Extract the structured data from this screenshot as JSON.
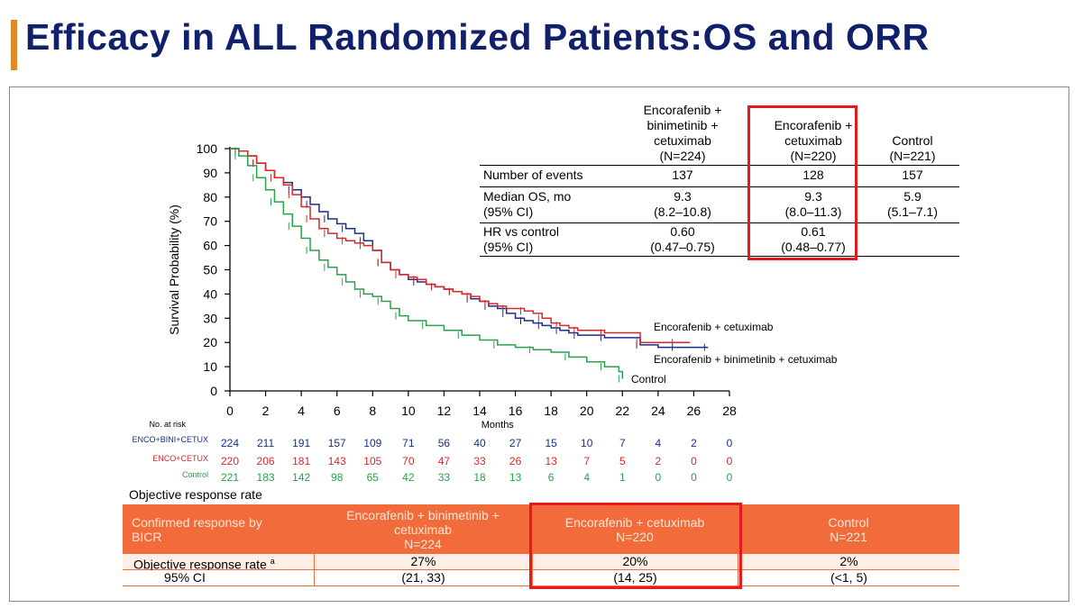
{
  "title": "Efficacy in ALL Randomized Patients:OS and ORR",
  "colors": {
    "accent": "#e08a2c",
    "title": "#10206b",
    "enco_bini_cetux": "#1a2f8a",
    "enco_cetux": "#d42a2a",
    "control": "#2aa14a",
    "orr_header": "#f26b3a",
    "highlight": "#e8191c"
  },
  "os_table": {
    "headers": [
      "Encorafenib  + binimetinib + cetuximab (N=224)",
      "Encorafenib  + cetuximab (N=220)",
      "Control (N=221)"
    ],
    "header_lines": [
      [
        "Encorafenib  +",
        "binimetinib +",
        "cetuximab",
        "(N=224)"
      ],
      [
        "Encorafenib  +",
        "cetuximab",
        "(N=220)"
      ],
      [
        "Control",
        "(N=221)"
      ]
    ],
    "rows": [
      {
        "label": [
          "Number of events"
        ],
        "values": [
          [
            "137"
          ],
          [
            "128"
          ],
          [
            "157"
          ]
        ]
      },
      {
        "label": [
          "Median OS, mo",
          "(95% CI)"
        ],
        "values": [
          [
            "9.3",
            "(8.2–10.8)"
          ],
          [
            "9.3",
            "(8.0–11.3)"
          ],
          [
            "5.9",
            "(5.1–7.1)"
          ]
        ]
      },
      {
        "label": [
          "HR vs control",
          "(95% CI)"
        ],
        "values": [
          [
            "0.60",
            "(0.47–0.75)"
          ],
          [
            "0.61",
            "(0.48–0.77)"
          ],
          [
            ""
          ]
        ]
      }
    ]
  },
  "chart_data": {
    "type": "line",
    "title": "",
    "xlabel": "Months",
    "ylabel": "Survival Probability (%)",
    "xlim": [
      0,
      28
    ],
    "ylim": [
      0,
      100
    ],
    "xticks": [
      0,
      2,
      4,
      6,
      8,
      10,
      12,
      14,
      16,
      18,
      20,
      22,
      24,
      26,
      28
    ],
    "yticks": [
      0,
      10,
      20,
      30,
      40,
      50,
      60,
      70,
      80,
      90,
      100
    ],
    "series": [
      {
        "name": "Encorafenib + binimetinib + cetuximab",
        "color": "#1a2f8a",
        "x": [
          0,
          0.5,
          1,
          1.5,
          2,
          2.5,
          3,
          3.5,
          4,
          4.5,
          5,
          5.5,
          6,
          6.5,
          7,
          7.5,
          8,
          8.5,
          9,
          9.5,
          10,
          10.5,
          11,
          11.5,
          12,
          12.5,
          13,
          13.5,
          14,
          14.5,
          15,
          15.5,
          16,
          16.5,
          17,
          17.5,
          18,
          18.5,
          19,
          19.5,
          20,
          21,
          22,
          23,
          24,
          25,
          26,
          26.8
        ],
        "y": [
          100,
          99,
          97,
          94,
          91,
          88,
          86,
          83,
          80,
          77,
          74,
          71,
          69,
          67,
          65,
          62,
          58,
          53,
          50,
          48,
          46,
          45,
          44,
          43,
          42,
          41,
          40,
          38,
          37,
          35,
          34,
          32,
          30,
          29,
          28,
          27,
          26,
          25,
          24,
          23,
          23,
          22,
          22,
          19,
          18,
          18,
          18,
          18
        ]
      },
      {
        "name": "Encorafenib + cetuximab",
        "color": "#d42a2a",
        "x": [
          0,
          0.5,
          1,
          1.5,
          2,
          2.5,
          3,
          3.5,
          4,
          4.5,
          5,
          5.5,
          6,
          6.5,
          7,
          7.5,
          8,
          8.5,
          9,
          9.5,
          10,
          10.5,
          11,
          11.5,
          12,
          12.5,
          13,
          13.5,
          14,
          14.5,
          15,
          15.5,
          16,
          16.5,
          17,
          17.5,
          18,
          18.5,
          19,
          19.5,
          20,
          21,
          22,
          23,
          24,
          25,
          25.8
        ],
        "y": [
          100,
          99,
          97,
          94,
          91,
          88,
          85,
          81,
          76,
          71,
          67,
          65,
          63,
          62,
          61,
          60,
          58,
          53,
          50,
          48,
          47,
          46,
          44,
          43,
          42,
          41,
          40,
          39,
          37,
          36,
          35,
          34,
          34,
          33,
          32,
          30,
          28,
          27,
          26,
          25,
          25,
          24,
          24,
          20,
          20,
          20,
          20
        ]
      },
      {
        "name": "Control",
        "color": "#2aa14a",
        "x": [
          0,
          0.5,
          1,
          1.5,
          2,
          2.5,
          3,
          3.5,
          4,
          4.5,
          5,
          5.5,
          6,
          6.5,
          7,
          7.5,
          8,
          8.5,
          9,
          9.5,
          10,
          11,
          12,
          13,
          14,
          15,
          16,
          17,
          18,
          19,
          20,
          21,
          21.8,
          22
        ],
        "y": [
          100,
          97,
          93,
          88,
          83,
          78,
          73,
          68,
          63,
          58,
          54,
          51,
          48,
          45,
          42,
          40,
          39,
          37,
          34,
          31,
          29,
          27,
          25,
          23,
          21,
          19,
          18,
          17,
          16,
          14,
          12,
          10,
          8,
          5
        ]
      }
    ],
    "series_labels": [
      "Encorafenib + cetuximab",
      "Encorafenib + binimetinib + cetuximab",
      "Control"
    ]
  },
  "risk_table": {
    "header": "No. at risk",
    "rows": [
      {
        "label": "ENCO+BINI+CETUX",
        "color": "#1a2f8a",
        "values": [
          "224",
          "211",
          "191",
          "157",
          "109",
          "71",
          "56",
          "40",
          "27",
          "15",
          "10",
          "7",
          "4",
          "2",
          "0"
        ]
      },
      {
        "label": "ENCO+CETUX",
        "color": "#d42a2a",
        "values": [
          "220",
          "206",
          "181",
          "143",
          "105",
          "70",
          "47",
          "33",
          "26",
          "13",
          "7",
          "5",
          "2",
          "0",
          "0"
        ]
      },
      {
        "label": "Control",
        "color": "#2aa14a",
        "values": [
          "221",
          "183",
          "142",
          "98",
          "65",
          "42",
          "33",
          "18",
          "13",
          "6",
          "4",
          "1",
          "0",
          "0",
          "0"
        ]
      }
    ]
  },
  "orr": {
    "caption": "Objective response rate",
    "header": [
      [
        "Confirmed response by",
        "BICR"
      ],
      [
        "Encorafenib + binimetinib +",
        "cetuximab",
        "N=224"
      ],
      [
        "Encorafenib + cetuximab",
        "N=220"
      ],
      [
        "Control",
        "N=221"
      ]
    ],
    "rows": [
      {
        "label": "Objective response rate",
        "sup": "a",
        "values": [
          "27%",
          "20%",
          "2%"
        ]
      },
      {
        "label": "95% CI",
        "sup": "",
        "values": [
          "(21, 33)",
          "(14, 25)",
          "(<1, 5)"
        ]
      }
    ]
  }
}
